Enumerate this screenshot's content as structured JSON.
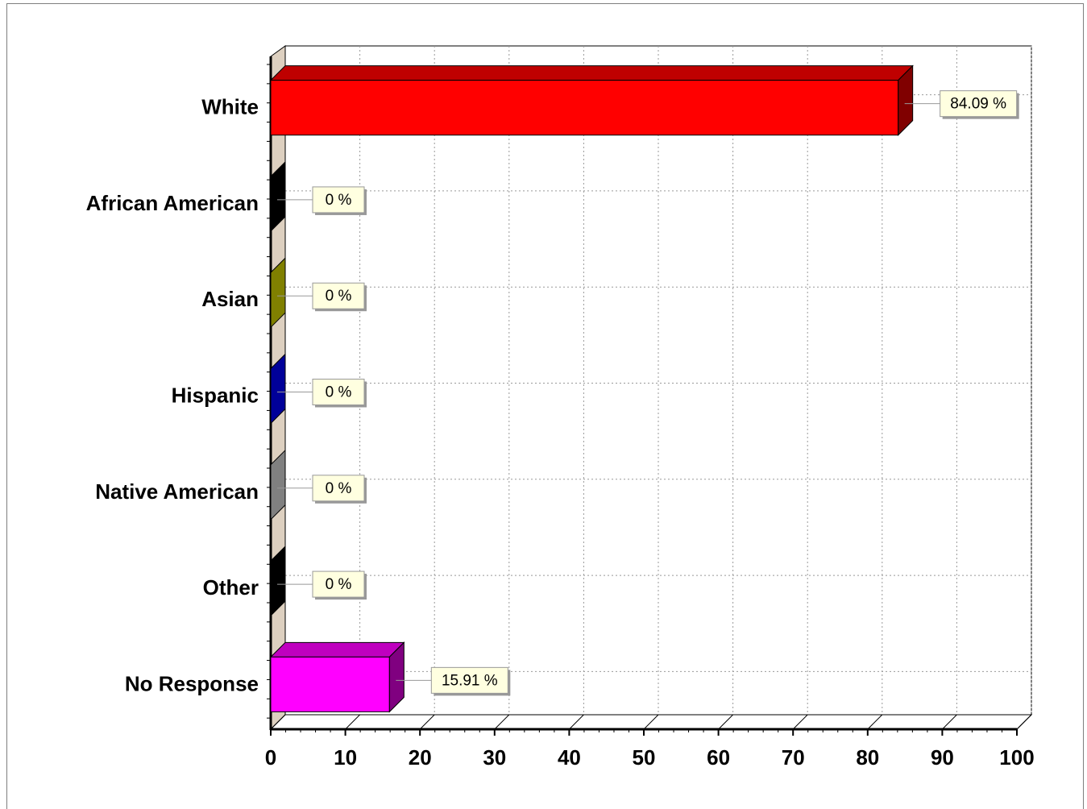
{
  "chart_data": {
    "type": "bar",
    "orientation": "horizontal",
    "categories": [
      "White",
      "African American",
      "Asian",
      "Hispanic",
      "Native American",
      "Other",
      "No Response"
    ],
    "values": [
      84.09,
      0,
      0,
      0,
      0,
      0,
      15.91
    ],
    "data_labels": [
      "84.09 %",
      "0 %",
      "0 %",
      "0 %",
      "0 %",
      "0 %",
      "15.91 %"
    ],
    "colors": [
      "#ff0000",
      "#000000",
      "#808000",
      "#000099",
      "#808080",
      "#000000",
      "#ff00ff"
    ],
    "xlim": [
      0,
      100
    ],
    "xticks": [
      0,
      10,
      20,
      30,
      40,
      50,
      60,
      70,
      80,
      90,
      100
    ],
    "grid": true,
    "grid_style": "dotted",
    "style": "3d",
    "label_box_color": "#ffffe0"
  }
}
